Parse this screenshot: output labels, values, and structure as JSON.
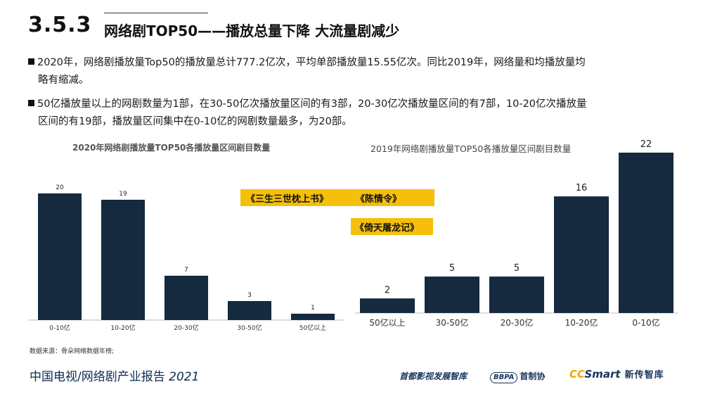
{
  "header": {
    "section_number": "3.5.3",
    "section_title": "网络剧TOP50——播放总量下降  大流量剧减少"
  },
  "bullets": [
    {
      "line1": "2020年，网络剧播放量Top50的播放量总计777.2亿次，平均单部播放量15.55亿次。同比2019年，网络量和均播放量均",
      "line2": "略有缩减。"
    },
    {
      "line1": "50亿播放量以上的网剧数量为1部，在30-50亿次播放量区间的有3部，20-30亿次播放量区间的有7部，10-20亿次播放量",
      "line2": "区间的有19部，播放量区间集中在0-10亿的网剧数量最多，为20部。"
    }
  ],
  "highlight_tags": {
    "tag1_a": "《三生三世枕上书》",
    "tag1_b": "《陈情令》",
    "tag2": "《倚天屠龙记》"
  },
  "source_note": "数据来源：骨朵网络数据年榜;",
  "footer": {
    "report_title": "中国电视/网络剧产业报告",
    "report_year": "2021",
    "logo_capital": "首都影视发展智库",
    "logo_bbpa": "BBPA",
    "logo_bbpa_cn": "首制协",
    "logo_cc": "CC",
    "logo_smart": "Smart",
    "logo_ccn": "新传智库"
  },
  "colors": {
    "bar": "#15293f",
    "tag": "#f5bf0a",
    "text_dark": "#1a1a1a",
    "footer_navy": "#0d2b4e"
  },
  "chart_data": [
    {
      "type": "bar",
      "title": "2020年网络剧播放量TOP50各播放量区间剧目数量",
      "categories": [
        "0-10亿",
        "10-20亿",
        "20-30亿",
        "30-50亿",
        "50亿以上"
      ],
      "values": [
        20,
        19,
        7,
        3,
        1
      ],
      "ylim": [
        0,
        20
      ],
      "grid": false
    },
    {
      "type": "bar",
      "title": "2019年网络剧播放量TOP50各播放量区间剧目数量",
      "categories": [
        "50亿以上",
        "30-50亿",
        "20-30亿",
        "10-20亿",
        "0-10亿"
      ],
      "values": [
        2,
        5,
        5,
        16,
        22
      ],
      "ylim": [
        0,
        22
      ],
      "grid": false
    }
  ]
}
